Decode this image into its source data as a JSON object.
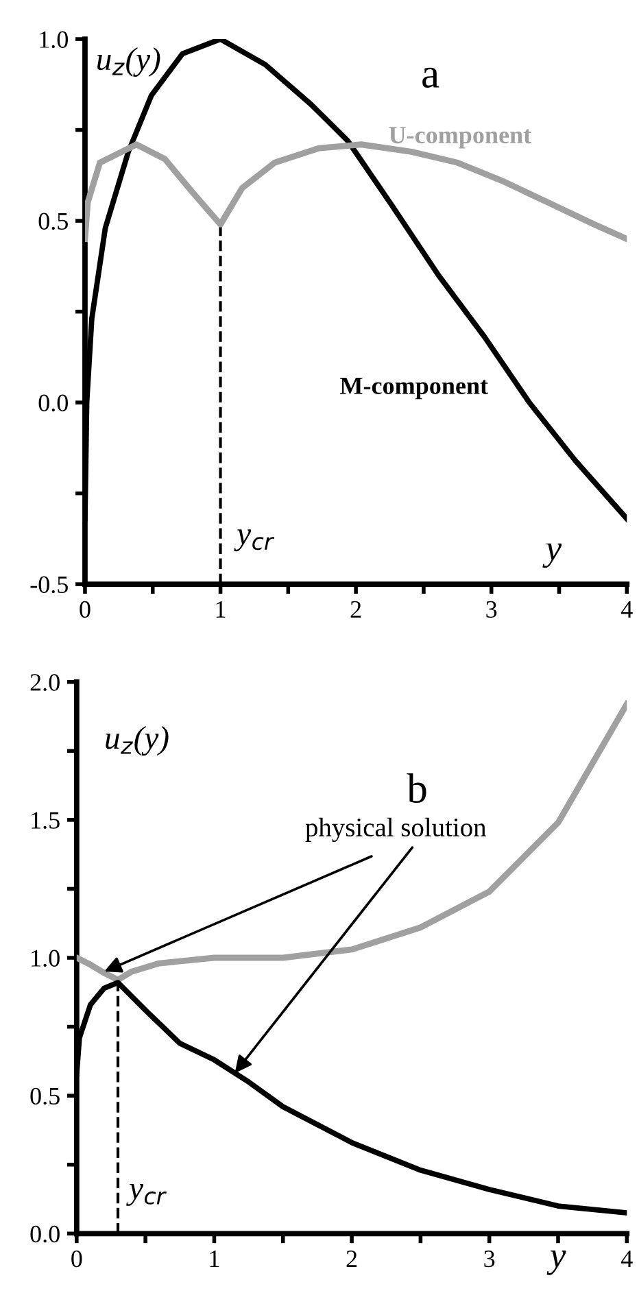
{
  "chart_data": [
    {
      "type": "line",
      "title": "a",
      "xlabel": "y",
      "ylabel": "u$_{z}$(y)",
      "x": [
        0,
        0.013,
        0.05,
        0.15,
        0.32,
        0.49,
        0.72,
        1,
        1.33,
        1.67,
        1.94,
        2.27,
        2.61,
        2.95,
        3.28,
        3.62,
        4
      ],
      "series": [
        {
          "name": "M-component",
          "color": "#000000",
          "values": [
            -0.32,
            0.0,
            0.23,
            0.48,
            0.69,
            0.845,
            0.96,
            1.0,
            0.93,
            0.82,
            0.72,
            0.54,
            0.35,
            0.18,
            0.0,
            -0.16,
            -0.32
          ]
        },
        {
          "name": "U-component",
          "color": "#a0a0a0",
          "x": [
            0,
            0.02,
            0.11,
            0.38,
            0.59,
            0.79,
            1,
            1.16,
            1.4,
            1.73,
            2.04,
            2.41,
            2.75,
            3.08,
            3.42,
            3.76,
            4
          ],
          "values": [
            0.45,
            0.55,
            0.66,
            0.71,
            0.67,
            0.58,
            0.49,
            0.59,
            0.66,
            0.7,
            0.71,
            0.69,
            0.66,
            0.61,
            0.55,
            0.49,
            0.45
          ]
        }
      ],
      "xlim": [
        0,
        4
      ],
      "ylim": [
        -0.5,
        1.0
      ],
      "xticks": [
        0,
        {
          "value": 0.5,
          "label": null
        },
        1,
        {
          "value": 1.5,
          "label": null
        },
        2,
        {
          "value": 2.5,
          "label": null
        },
        3,
        {
          "value": 3.5,
          "label": null
        },
        4
      ],
      "yticks": [
        {
          "value": -0.5,
          "label": "-0.5"
        },
        {
          "value": -0.25,
          "label": null
        },
        {
          "value": 0,
          "label": "0.0"
        },
        {
          "value": 0.25,
          "label": null
        },
        {
          "value": 0.5,
          "label": "0.5"
        },
        {
          "value": 0.75,
          "label": null
        },
        {
          "value": 1.0,
          "label": "1.0"
        }
      ],
      "ref_lines": [
        {
          "axis": "x",
          "value": 1,
          "label": "y$_{cr}$",
          "color": "#000000",
          "line_style": "dashed"
        }
      ],
      "grid": false,
      "legend": false
    },
    {
      "type": "line",
      "title": "b",
      "xlabel": "y",
      "ylabel": "u$_{z}$(y)",
      "x": [
        0,
        0.1,
        0.2,
        0.3,
        0.4,
        0.6,
        1,
        1.5,
        2,
        2.5,
        3,
        3.5,
        4
      ],
      "series": [
        {
          "color": "#a0a0a0",
          "values": [
            1.0,
            0.975,
            0.945,
            0.92,
            0.95,
            0.98,
            1.0,
            1.0,
            1.03,
            1.11,
            1.24,
            1.49,
            1.92
          ]
        },
        {
          "color": "#000000",
          "x": [
            0,
            0.02,
            0.1,
            0.2,
            0.3,
            0.5,
            0.75,
            1,
            1.25,
            1.5,
            2,
            2.5,
            3,
            3.5,
            4
          ],
          "values": [
            0.58,
            0.71,
            0.83,
            0.89,
            0.91,
            0.81,
            0.69,
            0.63,
            0.55,
            0.46,
            0.33,
            0.23,
            0.16,
            0.1,
            0.075
          ]
        }
      ],
      "xlim": [
        0,
        4
      ],
      "ylim": [
        0,
        2.0
      ],
      "xticks": [
        0,
        {
          "value": 0.5,
          "label": null
        },
        1,
        {
          "value": 1.5,
          "label": null
        },
        2,
        {
          "value": 2.5,
          "label": null
        },
        3,
        {
          "value": 3.5,
          "label": null
        },
        4
      ],
      "yticks": [
        {
          "value": 0,
          "label": "0.0"
        },
        {
          "value": 0.25,
          "label": null
        },
        {
          "value": 0.5,
          "label": "0.5"
        },
        {
          "value": 0.75,
          "label": null
        },
        {
          "value": 1.0,
          "label": "1.0"
        },
        {
          "value": 1.25,
          "label": null
        },
        {
          "value": 1.5,
          "label": "1.5"
        },
        {
          "value": 1.75,
          "label": null
        },
        {
          "value": 2.0,
          "label": "2.0"
        }
      ],
      "ref_lines": [
        {
          "axis": "x",
          "value": 0.3,
          "label": "y$_{cr}$",
          "color": "#000000",
          "line_style": "dashed"
        }
      ],
      "annotations": [
        {
          "text": "physical solution",
          "x": 0.2,
          "y": 0.95
        }
      ],
      "grid": false,
      "legend": false
    }
  ]
}
